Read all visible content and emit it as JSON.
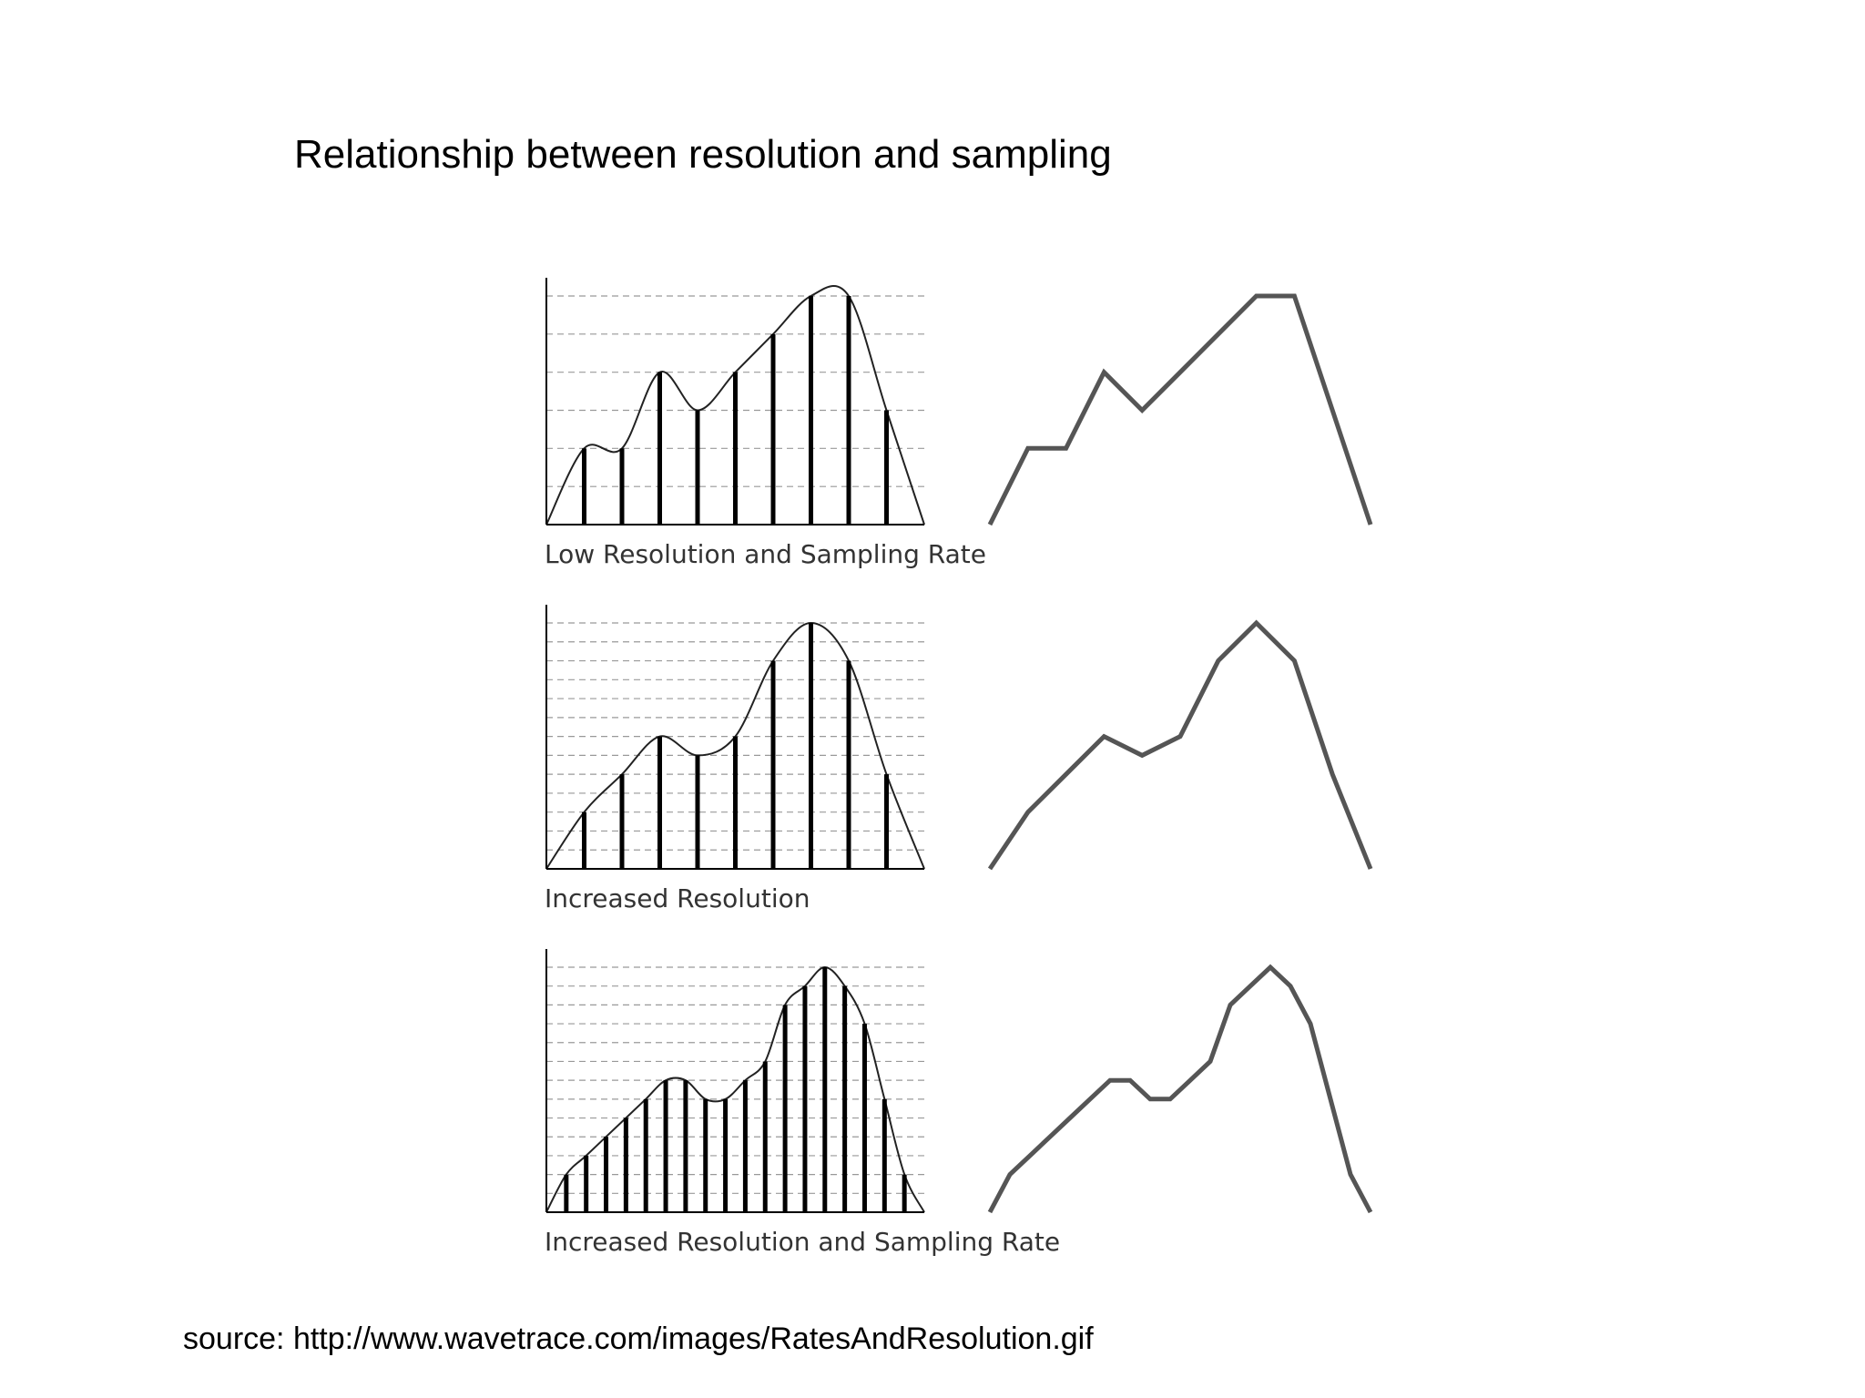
{
  "slide": {
    "title": "Relationship between resolution and sampling",
    "source": "source: http://www.wavetrace.com/images/RatesAndResolution.gif"
  },
  "colors": {
    "sample_bar": "#000000",
    "grid": "#999999",
    "curve": "#222222",
    "reconstruction": "#555555"
  },
  "panels": [
    {
      "caption": "Low Resolution and Sampling Rate",
      "quantization_levels": 6,
      "samples": [
        0,
        2,
        2,
        4,
        3,
        4,
        5,
        6,
        6,
        3,
        0
      ]
    },
    {
      "caption": "Increased Resolution",
      "quantization_levels": 13,
      "samples": [
        0,
        3,
        5,
        7,
        6,
        7,
        11,
        13,
        11,
        5,
        0
      ]
    },
    {
      "caption": "Increased Resolution and Sampling Rate",
      "quantization_levels": 13,
      "samples": [
        0,
        2,
        3,
        4,
        5,
        6,
        7,
        7,
        6,
        6,
        7,
        8,
        11,
        12,
        13,
        12,
        10,
        6,
        2,
        0
      ]
    }
  ]
}
